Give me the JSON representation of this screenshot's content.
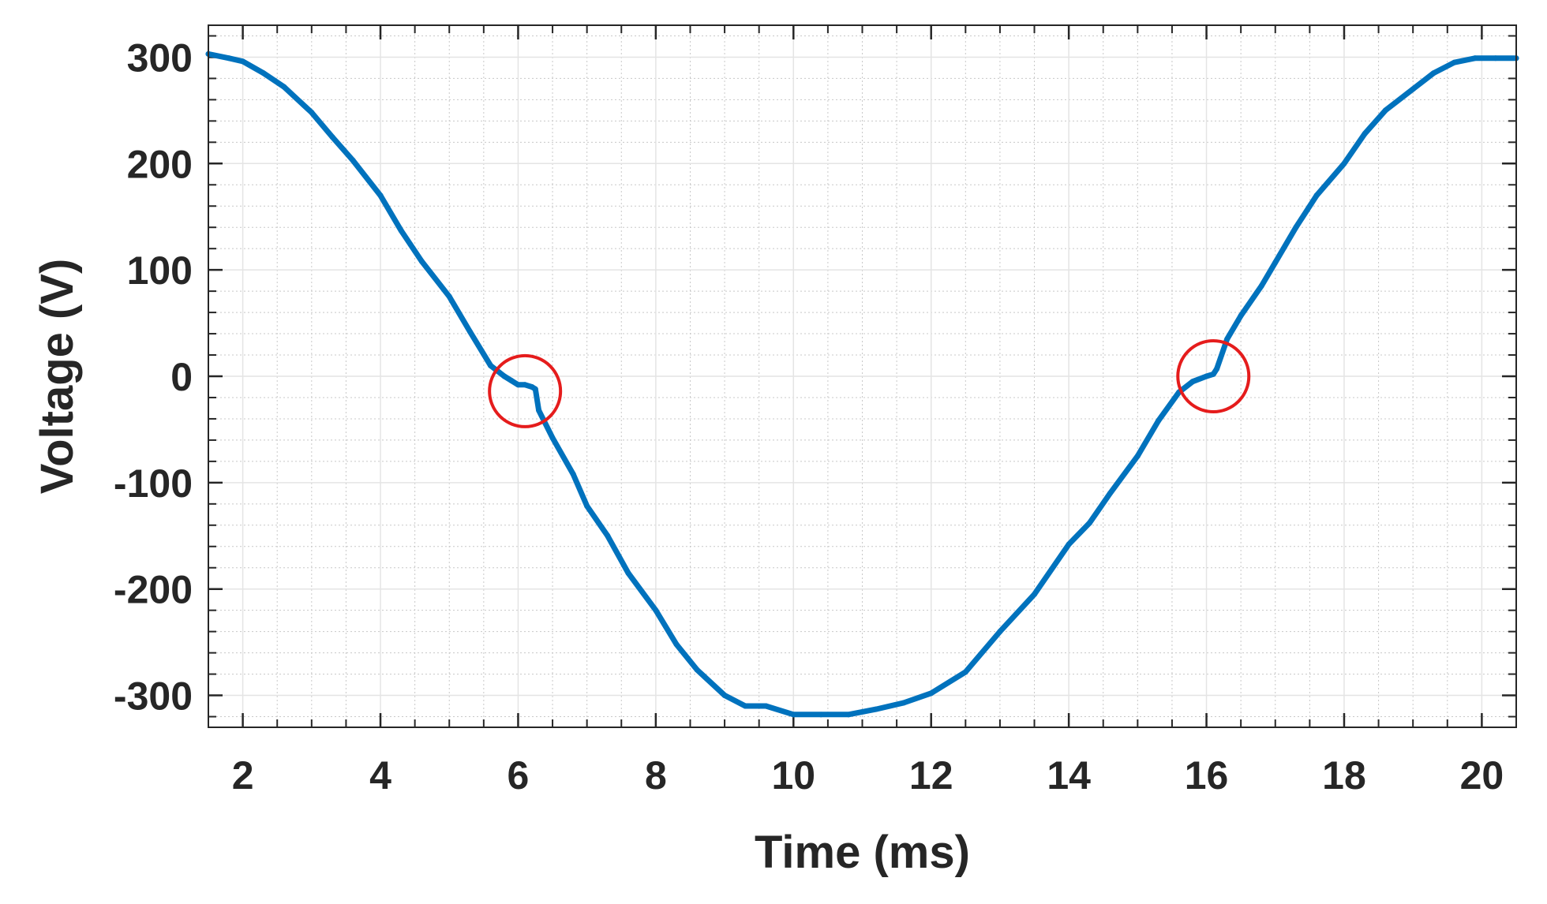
{
  "chart_data": {
    "type": "line",
    "title": "",
    "xlabel": "Time (ms)",
    "ylabel": "Voltage (V)",
    "xlim": [
      1.5,
      20.5
    ],
    "ylim": [
      -330,
      330
    ],
    "x_ticks": [
      2,
      4,
      6,
      8,
      10,
      12,
      14,
      16,
      18,
      20
    ],
    "x_tick_labels": [
      "2",
      "4",
      "6",
      "8",
      "10",
      "12",
      "14",
      "16",
      "18",
      "20"
    ],
    "y_ticks": [
      300,
      200,
      100,
      0,
      -100,
      -200,
      -300
    ],
    "y_tick_labels": [
      "300",
      "200",
      "100",
      "0",
      "-100",
      "-200",
      "-300"
    ],
    "grid": true,
    "minor_grid": true,
    "legend": "none",
    "series": [
      {
        "color": "#0072bd",
        "x": [
          1.5,
          1.8,
          2.0,
          2.3,
          2.6,
          3.0,
          3.3,
          3.6,
          4.0,
          4.3,
          4.6,
          5.0,
          5.3,
          5.6,
          5.8,
          5.9,
          6.0,
          6.1,
          6.2,
          6.25,
          6.3,
          6.5,
          6.8,
          7.0,
          7.3,
          7.6,
          8.0,
          8.3,
          8.6,
          9.0,
          9.3,
          9.6,
          10.0,
          10.4,
          10.8,
          11.2,
          11.6,
          12.0,
          12.5,
          13.0,
          13.5,
          14.0,
          14.3,
          14.6,
          15.0,
          15.3,
          15.6,
          15.8,
          16.0,
          16.1,
          16.15,
          16.3,
          16.5,
          16.8,
          17.0,
          17.3,
          17.6,
          18.0,
          18.3,
          18.6,
          19.0,
          19.3,
          19.6,
          19.9,
          20.2,
          20.5
        ],
        "values": [
          303,
          299,
          296,
          285,
          272,
          248,
          225,
          203,
          170,
          137,
          108,
          75,
          42,
          10,
          0,
          -4,
          -8,
          -8,
          -10,
          -12,
          -32,
          -58,
          -92,
          -122,
          -150,
          -185,
          -220,
          -252,
          -276,
          -300,
          -310,
          -310,
          -318,
          -318,
          -318,
          -313,
          -307,
          -298,
          -278,
          -240,
          -205,
          -158,
          -138,
          -110,
          -75,
          -42,
          -15,
          -5,
          0,
          2,
          7,
          35,
          57,
          85,
          107,
          140,
          170,
          200,
          228,
          250,
          270,
          285,
          295,
          299,
          299,
          299
        ]
      }
    ],
    "annotations": [
      {
        "type": "circle",
        "color": "#e51c1c",
        "x": 6.1,
        "y": -14
      },
      {
        "type": "circle",
        "color": "#e51c1c",
        "x": 16.1,
        "y": 0
      }
    ]
  }
}
